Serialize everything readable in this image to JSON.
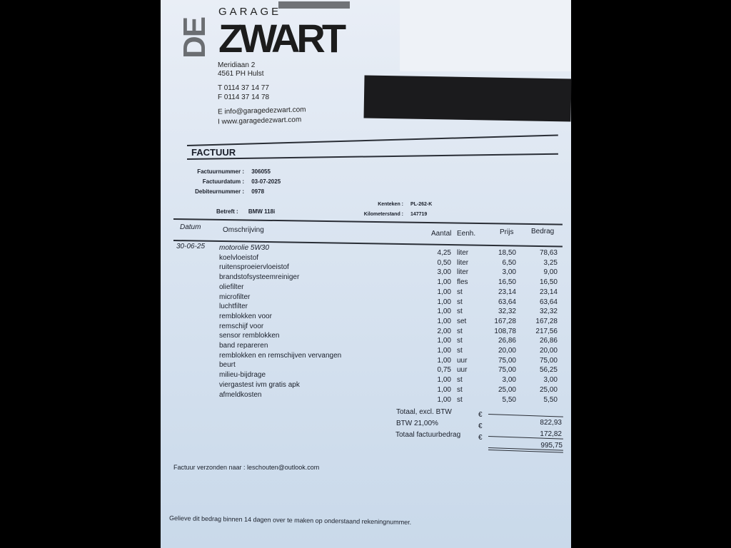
{
  "company": {
    "logo_text": "DE GARAGE ZWART",
    "address": [
      "Meridiaan 2",
      "4561 PH Hulst"
    ],
    "phone": "T 0114 37 14 77",
    "fax": "F 0114 37 14 78",
    "email": "E info@garagedezwart.com",
    "web": "I www.garagedezwart.com"
  },
  "title": "FACTUUR",
  "meta": [
    {
      "label": "Factuurnummer :",
      "value": "306055"
    },
    {
      "label": "Factuurdatum :",
      "value": "03-07-2025"
    },
    {
      "label": "Debiteurnummer :",
      "value": "0978"
    }
  ],
  "betreft": {
    "label": "Betreft :",
    "value": "BMW 118i"
  },
  "kenteken": {
    "label": "Kenteken :",
    "value": "PL-262-K"
  },
  "kilometerstand": {
    "label": "Kilometerstand :",
    "value": "147719"
  },
  "headers": {
    "datum": "Datum",
    "omschrijving": "Omschrijving",
    "aantal": "Aantal",
    "eenh": "Eenh.",
    "prijs": "Prijs",
    "bedrag": "Bedrag"
  },
  "date": "30-06-25",
  "descriptions": [
    "motorolie 5W30",
    "koelvloeistof",
    "ruitensproeiervloeistof",
    "brandstofsysteemreiniger",
    "oliefilter",
    "microfilter",
    "luchtfilter",
    "remblokken voor",
    "remschijf voor",
    "sensor remblokken",
    "band repareren",
    "remblokken en remschijven vervangen",
    "beurt",
    "milieu-bijdrage",
    "viergastest ivm gratis apk",
    "afmeldkosten"
  ],
  "amounts": [
    {
      "aantal": "4,25",
      "eenh": "liter",
      "prijs": "18,50",
      "bedrag": "78,63"
    },
    {
      "aantal": "0,50",
      "eenh": "liter",
      "prijs": "6,50",
      "bedrag": "3,25"
    },
    {
      "aantal": "3,00",
      "eenh": "liter",
      "prijs": "3,00",
      "bedrag": "9,00"
    },
    {
      "aantal": "1,00",
      "eenh": "fles",
      "prijs": "16,50",
      "bedrag": "16,50"
    },
    {
      "aantal": "1,00",
      "eenh": "st",
      "prijs": "23,14",
      "bedrag": "23,14"
    },
    {
      "aantal": "1,00",
      "eenh": "st",
      "prijs": "63,64",
      "bedrag": "63,64"
    },
    {
      "aantal": "1,00",
      "eenh": "st",
      "prijs": "32,32",
      "bedrag": "32,32"
    },
    {
      "aantal": "1,00",
      "eenh": "set",
      "prijs": "167,28",
      "bedrag": "167,28"
    },
    {
      "aantal": "2,00",
      "eenh": "st",
      "prijs": "108,78",
      "bedrag": "217,56"
    },
    {
      "aantal": "1,00",
      "eenh": "st",
      "prijs": "26,86",
      "bedrag": "26,86"
    },
    {
      "aantal": "1,00",
      "eenh": "st",
      "prijs": "20,00",
      "bedrag": "20,00"
    },
    {
      "aantal": "1,00",
      "eenh": "uur",
      "prijs": "75,00",
      "bedrag": "75,00"
    },
    {
      "aantal": "0,75",
      "eenh": "uur",
      "prijs": "75,00",
      "bedrag": "56,25"
    },
    {
      "aantal": "1,00",
      "eenh": "st",
      "prijs": "3,00",
      "bedrag": "3,00"
    },
    {
      "aantal": "1,00",
      "eenh": "st",
      "prijs": "25,00",
      "bedrag": "25,00"
    },
    {
      "aantal": "1,00",
      "eenh": "st",
      "prijs": "5,50",
      "bedrag": "5,50"
    }
  ],
  "totals": [
    {
      "label": "Totaal, excl. BTW",
      "currency": "€",
      "value": "822,93"
    },
    {
      "label": "BTW  21,00%",
      "currency": "€",
      "value": "172,82"
    },
    {
      "label": "Totaal factuurbedrag",
      "currency": "€",
      "value": "995,75"
    }
  ],
  "sent_to": "Factuur verzonden naar : leschouten@outlook.com",
  "payment_note": "Gelieve dit bedrag binnen 14 dagen over te maken op onderstaand rekeningnummer."
}
